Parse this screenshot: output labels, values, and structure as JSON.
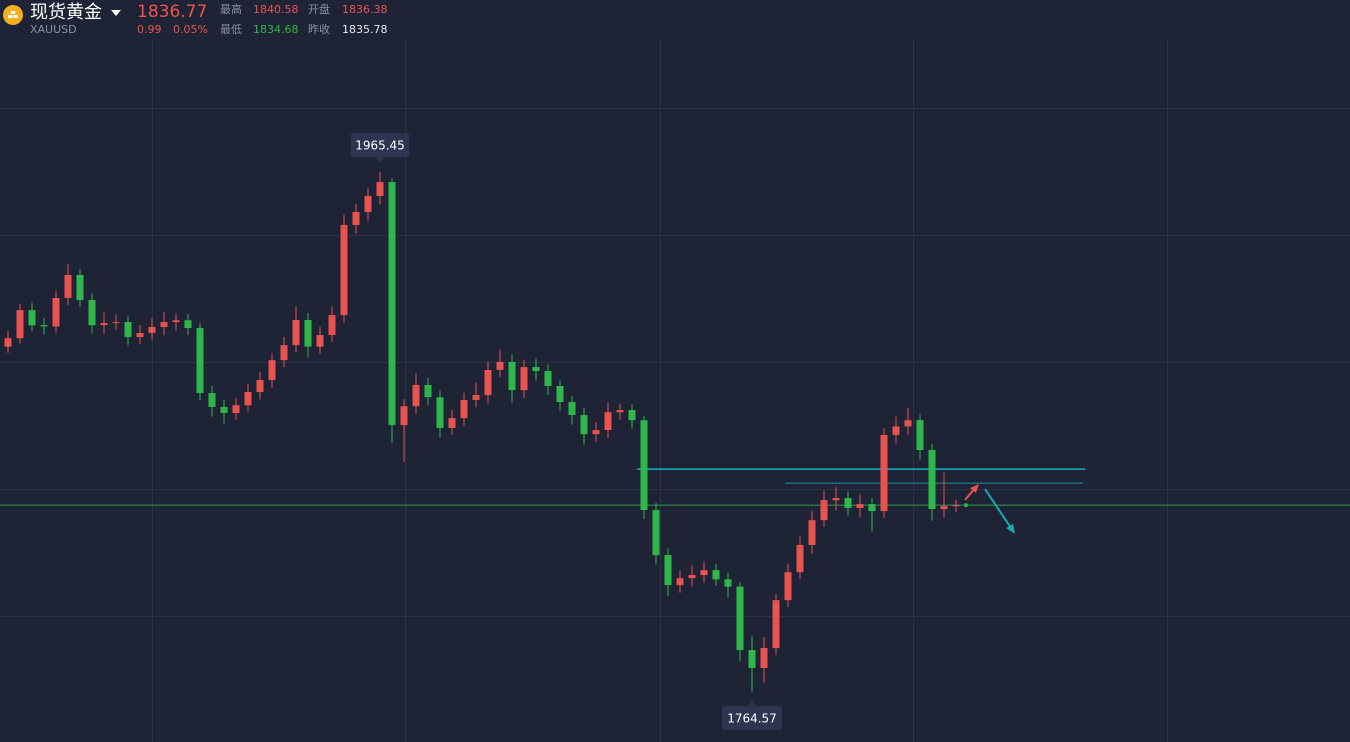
{
  "header": {
    "name": "现货黄金",
    "symbol": "XAUUSD",
    "price": "1836.77",
    "change": "0.99",
    "change_pct": "0.05%",
    "stats": [
      {
        "label": "最高",
        "value": "1840.58"
      },
      {
        "label": "开盘",
        "value": "1836.38"
      },
      {
        "label": "最低",
        "value": "1834.68"
      },
      {
        "label": "昨收",
        "value": "1835.78"
      }
    ]
  },
  "chart_data": {
    "type": "candlestick",
    "up_color": "#e8524f",
    "down_color": "#2fb849",
    "last_color": "#2fb849",
    "ylim": [
      1745.3,
      2031.9
    ],
    "open": [
      1898.0,
      1901.3,
      1912.1,
      1906.3,
      1905.8,
      1916.8,
      1925.7,
      1916.0,
      1906.3,
      1907.1,
      1907.5,
      1901.7,
      1903.3,
      1905.6,
      1907.5,
      1908.2,
      1905.2,
      1880.1,
      1874.7,
      1872.4,
      1875.4,
      1880.5,
      1885.1,
      1892.8,
      1898.6,
      1908.3,
      1898.0,
      1902.5,
      1910.2,
      1945.0,
      1950.0,
      1956.2,
      1961.6,
      1867.7,
      1875.0,
      1883.2,
      1878.5,
      1866.6,
      1870.4,
      1877.4,
      1879.3,
      1889.0,
      1892.1,
      1881.2,
      1890.1,
      1888.6,
      1882.8,
      1876.6,
      1871.6,
      1864.2,
      1865.8,
      1872.7,
      1873.5,
      1869.6,
      1834.9,
      1817.5,
      1805.9,
      1808.6,
      1809.8,
      1811.7,
      1808.1,
      1805.3,
      1780.8,
      1773.9,
      1781.6,
      1800.1,
      1810.9,
      1821.4,
      1831.0,
      1838.7,
      1839.5,
      1835.7,
      1837.2,
      1834.5,
      1863.9,
      1867.2,
      1869.6,
      1858.1,
      1835.3,
      1836.4
    ],
    "high": [
      1904.0,
      1914.5,
      1915.0,
      1909.1,
      1919.3,
      1929.8,
      1927.9,
      1918.6,
      1911.2,
      1910.4,
      1909.9,
      1906.4,
      1909.0,
      1911.3,
      1911.0,
      1910.6,
      1907.1,
      1882.9,
      1877.5,
      1878.0,
      1883.6,
      1888.2,
      1895.3,
      1901.7,
      1913.4,
      1911.0,
      1905.6,
      1913.5,
      1948.9,
      1953.1,
      1959.4,
      1965.45,
      1963.0,
      1877.8,
      1887.6,
      1886.0,
      1880.9,
      1873.6,
      1880.2,
      1884.1,
      1892.3,
      1896.8,
      1894.9,
      1893.0,
      1893.3,
      1891.2,
      1885.1,
      1879.0,
      1874.2,
      1868.9,
      1876.4,
      1876.1,
      1875.8,
      1871.2,
      1837.6,
      1820.1,
      1811.4,
      1813.5,
      1815.2,
      1814.0,
      1810.7,
      1807.0,
      1786.3,
      1785.9,
      1802.4,
      1814.3,
      1824.8,
      1834.6,
      1842.5,
      1843.9,
      1842.1,
      1840.9,
      1839.5,
      1866.5,
      1870.9,
      1874.3,
      1871.8,
      1860.4,
      1849.5,
      1838.9
    ],
    "low": [
      1895.6,
      1899.2,
      1903.9,
      1902.7,
      1903.5,
      1914.0,
      1913.4,
      1903.1,
      1902.8,
      1904.6,
      1898.5,
      1898.9,
      1900.7,
      1902.4,
      1904.3,
      1902.6,
      1877.2,
      1871.0,
      1868.3,
      1869.8,
      1872.9,
      1877.6,
      1882.0,
      1890.1,
      1895.9,
      1893.8,
      1895.2,
      1899.8,
      1907.4,
      1941.7,
      1946.8,
      1952.9,
      1860.9,
      1853.5,
      1872.1,
      1875.3,
      1862.8,
      1863.9,
      1867.5,
      1874.6,
      1876.0,
      1886.2,
      1876.4,
      1878.1,
      1885.0,
      1879.4,
      1873.3,
      1867.9,
      1860.1,
      1861.3,
      1862.7,
      1869.8,
      1866.4,
      1831.4,
      1813.8,
      1801.7,
      1803.0,
      1805.4,
      1806.9,
      1805.6,
      1801.2,
      1776.5,
      1764.57,
      1768.2,
      1778.9,
      1797.5,
      1808.2,
      1818.0,
      1828.4,
      1834.8,
      1832.6,
      1832.1,
      1826.4,
      1831.8,
      1860.6,
      1864.0,
      1854.2,
      1830.8,
      1832.0,
      1834.1
    ],
    "close": [
      1901.3,
      1912.1,
      1906.3,
      1905.8,
      1916.8,
      1925.7,
      1916.0,
      1906.3,
      1907.1,
      1907.5,
      1901.7,
      1903.3,
      1905.6,
      1907.5,
      1908.2,
      1905.2,
      1880.1,
      1874.7,
      1872.4,
      1875.4,
      1880.5,
      1885.1,
      1892.8,
      1898.6,
      1908.3,
      1898.0,
      1902.5,
      1910.2,
      1945.0,
      1950.0,
      1956.2,
      1961.6,
      1867.7,
      1875.0,
      1883.2,
      1878.5,
      1866.6,
      1870.4,
      1877.4,
      1879.3,
      1889.0,
      1892.1,
      1881.2,
      1890.1,
      1888.6,
      1882.8,
      1876.6,
      1871.6,
      1864.2,
      1865.8,
      1872.7,
      1873.5,
      1869.6,
      1834.9,
      1817.5,
      1805.9,
      1808.6,
      1809.8,
      1811.7,
      1808.1,
      1805.3,
      1780.8,
      1773.9,
      1781.6,
      1800.1,
      1810.9,
      1821.4,
      1831.0,
      1838.7,
      1839.5,
      1835.7,
      1837.2,
      1834.5,
      1863.9,
      1867.2,
      1869.6,
      1858.1,
      1835.3,
      1836.4,
      1836.77
    ],
    "levels": [
      {
        "value": 1850.7,
        "color": "#19b3c2"
      },
      {
        "value": 1845.3,
        "color": "#19b3c2"
      }
    ]
  }
}
